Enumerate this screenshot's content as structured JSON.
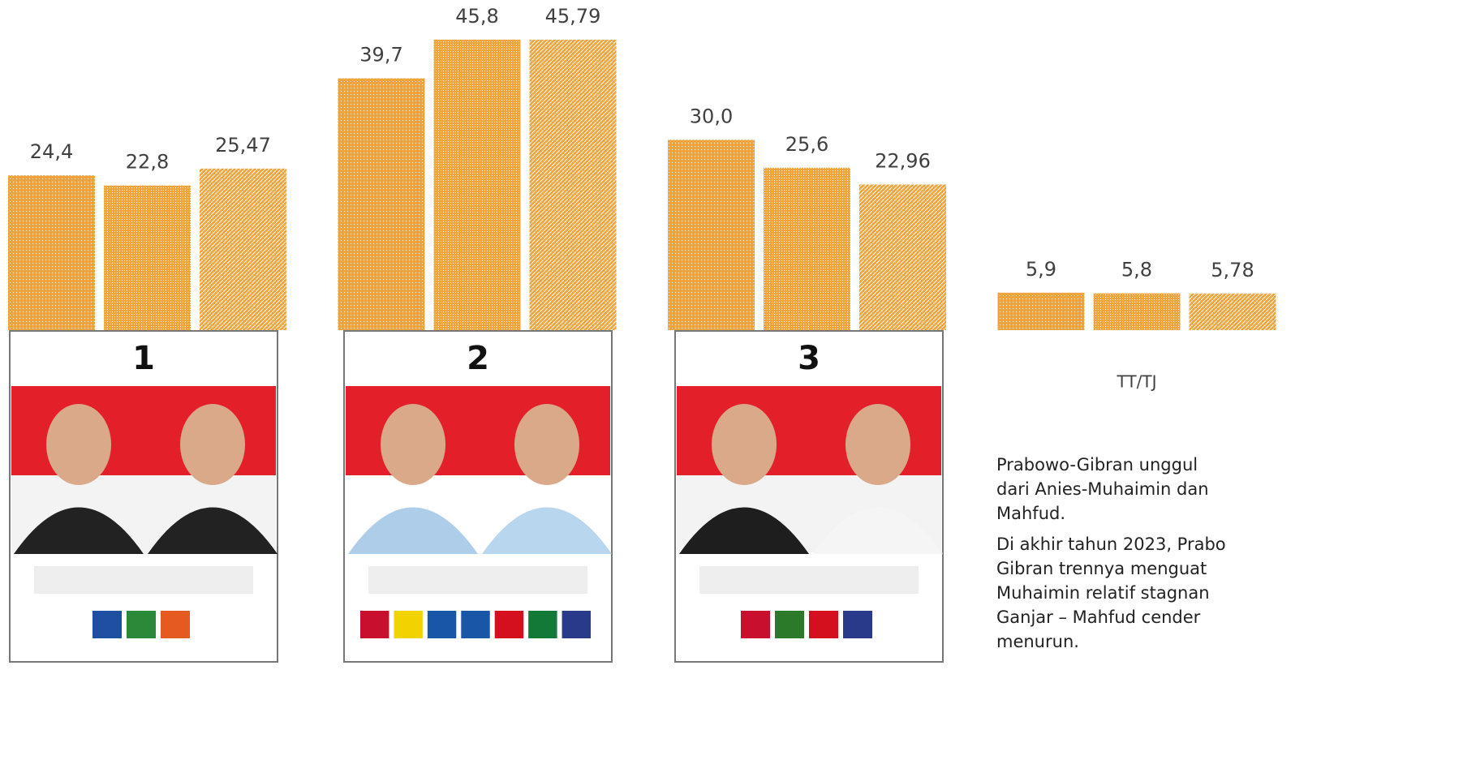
{
  "chart_data": {
    "type": "bar",
    "categories": [
      null,
      null,
      null,
      "TT/TJ"
    ],
    "series": [
      {
        "color": "#f2a33a",
        "values": [
          24.4,
          39.7,
          30.0,
          5.9
        ],
        "value_labels": [
          "24,4",
          "39,7",
          "30,0",
          "5,9"
        ]
      },
      {
        "color": "#f2a33a",
        "values": [
          22.8,
          45.8,
          25.6,
          5.8
        ],
        "value_labels": [
          "22,8",
          "45,8",
          "25,6",
          "5,8"
        ]
      },
      {
        "color": "#f2a33a",
        "values": [
          25.47,
          45.79,
          22.96,
          5.78
        ],
        "value_labels": [
          "25,47",
          "45,79",
          "22,96",
          "5,78"
        ]
      }
    ],
    "ylim": [
      0,
      50
    ]
  },
  "cards": [
    "1",
    "2",
    "3"
  ],
  "notes": [
    [
      "Prabowo-Gibran unggul",
      "dari Anies-Muhaimin dan",
      "Mahfud."
    ],
    [
      "Di akhir tahun 2023, Prabo",
      "Gibran trennya menguat",
      "Muhaimin relatif stagnan",
      "Ganjar – Mahfud cender",
      "menurun."
    ]
  ]
}
